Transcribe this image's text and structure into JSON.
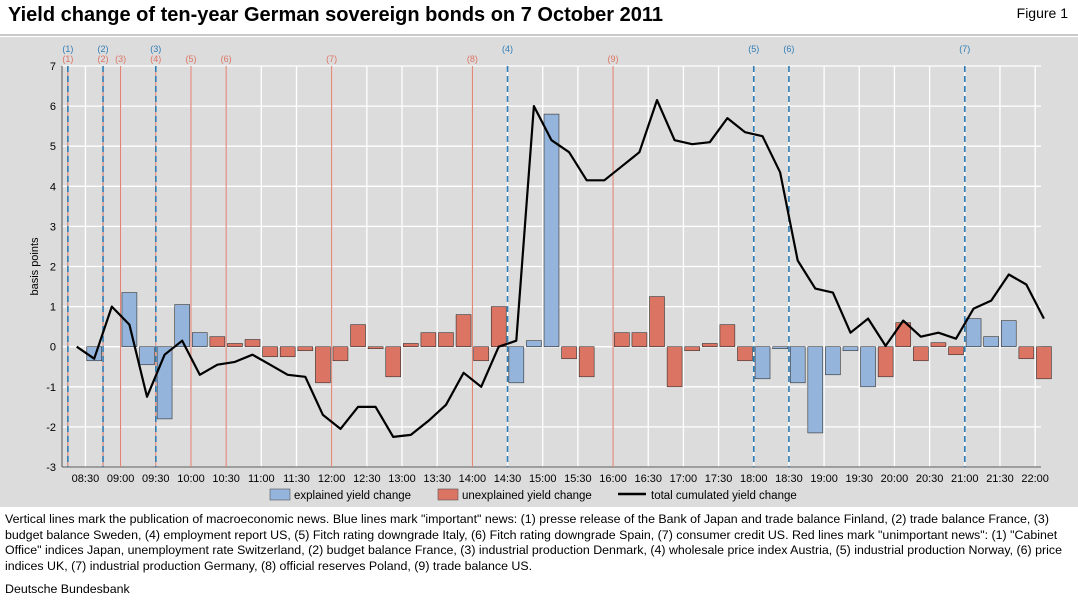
{
  "title": "Yield change of ten-year German sovereign bonds on 7 October 2011",
  "figure_label": "Figure 1",
  "note": "Vertical lines mark the publication of macroeconomic news. Blue lines mark \"important\" news: (1) presse release of the Bank of Japan and trade balance Finland, (2) trade balance France, (3) budget balance Sweden, (4) employment report US, (5) Fitch rating downgrade Italy, (6) Fitch rating downgrade Spain, (7) consumer credit US. Red lines mark \"unimportant news\": (1) \"Cabinet Office\" indices Japan, unemployment rate Switzerland, (2) budget balance France, (3) industrial production Denmark, (4) wholesale price index Austria, (5) industrial production Norway, (6) price indices UK, (7) industrial production Germany, (8) official reserves Poland, (9) trade balance US.",
  "source": "Deutsche Bundesbank",
  "colors": {
    "explained": "#94b4dc",
    "unexplained": "#dc7463",
    "line": "#000000",
    "blue_marker": "#2e7db6",
    "red_marker": "#dc7463",
    "grid": "#ffffff",
    "panel": "#dcdcdc"
  },
  "chart_data": {
    "type": "bar",
    "title": "Yield change of ten-year German sovereign bonds on 7 October 2011",
    "ylabel": "basis points",
    "xlabel": "",
    "ylim": [
      -3,
      7
    ],
    "yticks": [
      -3,
      -2,
      -1,
      0,
      1,
      2,
      3,
      4,
      5,
      6,
      7
    ],
    "grid": true,
    "legend_position": "bottom",
    "categories": [
      "08:15",
      "08:20",
      "08:25",
      "08:30",
      "08:35",
      "08:40",
      "08:45",
      "08:50",
      "08:55",
      "09:00",
      "09:05",
      "09:10",
      "09:15",
      "09:20",
      "09:25",
      "09:30",
      "09:35",
      "09:40",
      "09:45",
      "09:50",
      "09:55",
      "10:00",
      "10:05",
      "10:10",
      "10:15",
      "10:20",
      "10:25",
      "10:30",
      "10:35",
      "10:40",
      "10:45",
      "10:50",
      "10:55",
      "11:00",
      "11:05",
      "11:10",
      "11:15",
      "11:20",
      "11:25",
      "11:30",
      "11:35",
      "11:40",
      "11:45",
      "11:50",
      "11:55",
      "12:00",
      "12:05",
      "12:10",
      "12:15",
      "12:20",
      "12:25",
      "12:30",
      "12:35",
      "12:40",
      "12:45",
      "12:50",
      "12:55",
      "13:00",
      "13:05",
      "13:10",
      "13:15",
      "13:20",
      "13:25",
      "13:30",
      "13:35",
      "13:40",
      "13:45",
      "13:50",
      "13:55",
      "14:00",
      "14:05",
      "14:10",
      "14:15",
      "14:20",
      "14:25",
      "14:30",
      "14:35",
      "14:40",
      "14:45",
      "14:50",
      "14:55",
      "15:00",
      "15:05",
      "15:10",
      "15:15",
      "15:20",
      "15:25",
      "15:30",
      "15:35",
      "15:40",
      "15:45",
      "15:50",
      "15:55",
      "16:00",
      "16:05",
      "16:10",
      "16:15",
      "16:20",
      "16:25",
      "16:30",
      "16:35",
      "16:40",
      "16:45",
      "16:50",
      "16:55",
      "17:00",
      "17:05",
      "17:10",
      "17:15",
      "17:20",
      "17:25",
      "17:30",
      "17:35",
      "17:40",
      "17:45",
      "17:50",
      "17:55",
      "18:00",
      "18:05",
      "18:10",
      "18:15",
      "18:20",
      "18:25",
      "18:30",
      "18:35",
      "18:40",
      "18:45",
      "18:50",
      "18:55",
      "19:00",
      "19:05",
      "19:10",
      "19:15",
      "19:20",
      "19:25",
      "19:30",
      "19:35",
      "19:40",
      "19:45",
      "19:50",
      "19:55",
      "20:00",
      "20:05",
      "20:10",
      "20:15",
      "20:20",
      "20:25",
      "20:30",
      "20:35",
      "20:40",
      "20:45",
      "20:50",
      "20:55",
      "21:00",
      "21:05",
      "21:10",
      "21:15",
      "21:20",
      "21:25",
      "21:30",
      "21:35",
      "21:40",
      "21:45",
      "21:50",
      "21:55",
      "22:00"
    ],
    "x_tick_labels": [
      "08:30",
      "09:00",
      "09:30",
      "10:00",
      "10:30",
      "11:00",
      "11:30",
      "12:00",
      "12:30",
      "13:00",
      "13:30",
      "14:00",
      "14:30",
      "15:00",
      "15:30",
      "16:00",
      "16:30",
      "17:00",
      "17:30",
      "18:00",
      "18:30",
      "19:00",
      "19:30",
      "20:00",
      "20:30",
      "21:00",
      "21:30",
      "22:00"
    ],
    "bar_slot_hours": 0.25,
    "series": [
      {
        "name": "explained yield change",
        "type": "bar",
        "x": [
          "08:30",
          "09:00",
          "09:15",
          "09:30",
          "09:45",
          "10:00",
          "14:30",
          "14:45",
          "15:00",
          "18:00",
          "18:15",
          "18:30",
          "18:45",
          "19:00",
          "19:15",
          "19:30",
          "20:00",
          "21:00",
          "21:15",
          "21:30"
        ],
        "values": [
          -0.35,
          1.35,
          -0.45,
          -1.8,
          1.05,
          0.35,
          -0.9,
          0.15,
          5.8,
          -0.8,
          -0.05,
          -0.9,
          -2.15,
          -0.7,
          -0.1,
          -1.0,
          0.35,
          0.7,
          0.25,
          0.65
        ]
      },
      {
        "name": "unexplained yield change",
        "type": "bar",
        "x": [
          "10:15",
          "10:30",
          "10:45",
          "11:00",
          "11:15",
          "11:30",
          "11:45",
          "12:00",
          "12:15",
          "12:30",
          "12:45",
          "13:00",
          "13:15",
          "13:30",
          "13:45",
          "14:00",
          "14:15",
          "15:15",
          "15:30",
          "16:00",
          "16:15",
          "16:30",
          "16:45",
          "17:00",
          "17:15",
          "17:30",
          "17:45",
          "19:45",
          "20:00",
          "20:15",
          "20:30",
          "20:45",
          "21:45",
          "22:00"
        ],
        "values": [
          0.25,
          0.08,
          0.18,
          -0.25,
          -0.25,
          -0.1,
          -0.9,
          -0.35,
          0.55,
          -0.05,
          -0.75,
          0.08,
          0.35,
          0.35,
          0.8,
          -0.35,
          1.0,
          -0.3,
          -0.75,
          0.35,
          0.35,
          1.25,
          -1.0,
          -0.1,
          0.08,
          0.55,
          -0.35,
          -0.75,
          0.6,
          -0.35,
          0.1,
          -0.2,
          -0.3,
          -0.8
        ]
      },
      {
        "name": "total cumulated yield change",
        "type": "line",
        "x": [
          "08:15",
          "08:30",
          "08:45",
          "09:00",
          "09:15",
          "09:30",
          "09:45",
          "10:00",
          "10:15",
          "10:30",
          "10:45",
          "11:00",
          "11:15",
          "11:30",
          "11:45",
          "12:00",
          "12:15",
          "12:30",
          "12:45",
          "13:00",
          "13:15",
          "13:30",
          "13:45",
          "14:00",
          "14:15",
          "14:30",
          "14:45",
          "15:00",
          "15:15",
          "15:30",
          "15:45",
          "16:00",
          "16:15",
          "16:30",
          "16:45",
          "17:00",
          "17:15",
          "17:30",
          "17:45",
          "18:00",
          "18:15",
          "18:30",
          "18:45",
          "19:00",
          "19:15",
          "19:30",
          "19:45",
          "20:00",
          "20:15",
          "20:30",
          "20:45",
          "21:00",
          "21:15",
          "21:30",
          "21:45",
          "22:00"
        ],
        "values": [
          0.0,
          -0.3,
          1.0,
          0.55,
          -1.25,
          -0.2,
          0.15,
          -0.7,
          -0.45,
          -0.38,
          -0.2,
          -0.45,
          -0.7,
          -0.75,
          -1.7,
          -2.05,
          -1.5,
          -1.5,
          -2.25,
          -2.2,
          -1.85,
          -1.45,
          -0.65,
          -1.0,
          0.0,
          0.15,
          6.0,
          5.15,
          4.85,
          4.15,
          4.15,
          4.5,
          4.85,
          6.15,
          5.15,
          5.05,
          5.1,
          5.7,
          5.35,
          5.25,
          4.35,
          2.15,
          1.45,
          1.35,
          0.35,
          0.7,
          0.02,
          0.65,
          0.25,
          0.35,
          0.2,
          0.95,
          1.15,
          1.8,
          1.55,
          0.7
        ]
      }
    ],
    "event_markers": {
      "important": [
        {
          "label": "(1)",
          "time": "08:15"
        },
        {
          "label": "(2)",
          "time": "08:45"
        },
        {
          "label": "(3)",
          "time": "09:30"
        },
        {
          "label": "(4)",
          "time": "14:30"
        },
        {
          "label": "(5)",
          "time": "18:00"
        },
        {
          "label": "(6)",
          "time": "18:30"
        },
        {
          "label": "(7)",
          "time": "21:00"
        }
      ],
      "unimportant": [
        {
          "label": "(1)",
          "time": "08:15"
        },
        {
          "label": "(2)",
          "time": "08:45"
        },
        {
          "label": "(3)",
          "time": "09:00"
        },
        {
          "label": "(4)",
          "time": "09:30"
        },
        {
          "label": "(5)",
          "time": "10:00"
        },
        {
          "label": "(6)",
          "time": "10:30"
        },
        {
          "label": "(7)",
          "time": "12:00"
        },
        {
          "label": "(8)",
          "time": "14:00"
        },
        {
          "label": "(9)",
          "time": "16:00"
        }
      ]
    },
    "legend": [
      "explained yield change",
      "unexplained yield change",
      "total cumulated yield change"
    ]
  }
}
